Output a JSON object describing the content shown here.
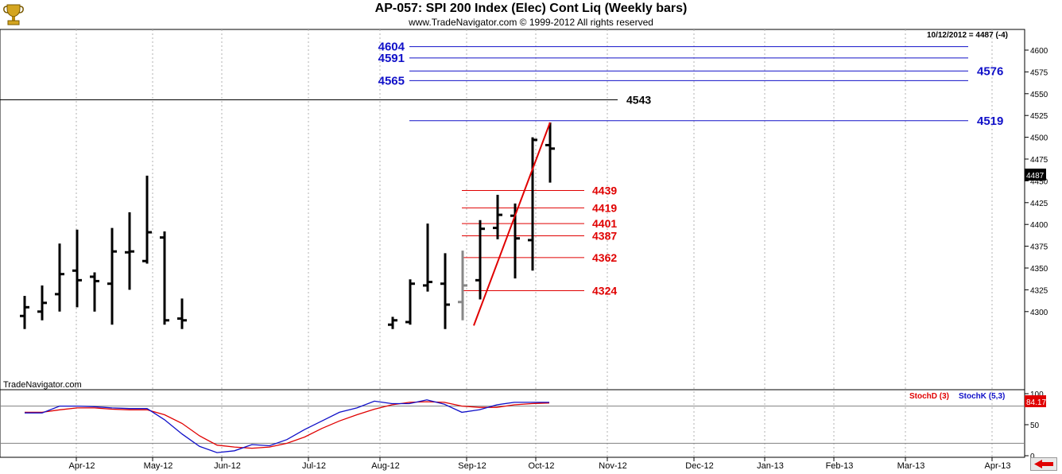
{
  "header": {
    "title": "AP-057:  SPI 200 Index (Elec) Cont Liq  (Weekly bars)",
    "subtitle": "www.TradeNavigator.com © 1999-2012 All rights reserved"
  },
  "watermark": "TradeNavigator.com",
  "last_quote": "10/12/2012 = 4487 (-4)",
  "price_marker": "4487",
  "stoch_marker": "84.17",
  "colors": {
    "bars": "#000000",
    "gray_bars": "#888888",
    "blue_levels": "#1010c8",
    "red_levels": "#e00000",
    "stoch_d": "#e00000",
    "stoch_k": "#1010c8"
  },
  "chart_data": [
    {
      "type": "ohlc",
      "title": "AP-057:  SPI 200 Index (Elec) Cont Liq  (Weekly bars)",
      "ylim": [
        4284,
        4624
      ],
      "yticks": [
        "4300",
        "4325",
        "4350",
        "4375",
        "4400",
        "4425",
        "4450",
        "4475",
        "4500",
        "4525",
        "4550",
        "4575",
        "4600"
      ],
      "x_tick_labels": [
        "Apr-12",
        "May-12",
        "Jun-12",
        "Jul-12",
        "Aug-12",
        "Sep-12",
        "Oct-12",
        "Nov-12",
        "Dec-12",
        "Jan-13",
        "Feb-13",
        "Mar-13",
        "Apr-13"
      ],
      "bars": [
        {
          "x": 31,
          "high": 4318,
          "low": 4280,
          "open": 4295,
          "close": 4305
        },
        {
          "x": 53,
          "high": 4330,
          "low": 4290,
          "open": 4300,
          "close": 4310
        },
        {
          "x": 75,
          "high": 4378,
          "low": 4300,
          "open": 4320,
          "close": 4343
        },
        {
          "x": 97,
          "high": 4394,
          "low": 4305,
          "open": 4347,
          "close": 4336
        },
        {
          "x": 119,
          "high": 4345,
          "low": 4300,
          "open": 4340,
          "close": 4335
        },
        {
          "x": 141,
          "high": 4396,
          "low": 4285,
          "open": 4332,
          "close": 4369
        },
        {
          "x": 163,
          "high": 4414,
          "low": 4325,
          "open": 4368,
          "close": 4369
        },
        {
          "x": 185,
          "high": 4456,
          "low": 4355,
          "open": 4358,
          "close": 4391
        },
        {
          "x": 207,
          "high": 4392,
          "low": 4285,
          "open": 4385,
          "close": 4290
        },
        {
          "x": 229,
          "high": 4315,
          "low": 4280,
          "open": 4292,
          "close": 4290
        },
        {
          "x": 494,
          "high": 4294,
          "low": 4280,
          "open": 4285,
          "close": 4290
        },
        {
          "x": 516,
          "high": 4337,
          "low": 4285,
          "open": 4288,
          "close": 4332
        },
        {
          "x": 538,
          "high": 4401,
          "low": 4323,
          "open": 4330,
          "close": 4334
        },
        {
          "x": 560,
          "high": 4367,
          "low": 4280,
          "open": 4332,
          "close": 4308
        },
        {
          "x": 582,
          "high": 4370,
          "low": 4290,
          "open": 4311,
          "close": 4330,
          "gray": true
        },
        {
          "x": 604,
          "high": 4405,
          "low": 4314,
          "open": 4336,
          "close": 4395
        },
        {
          "x": 626,
          "high": 4434,
          "low": 4383,
          "open": 4396,
          "close": 4411
        },
        {
          "x": 648,
          "high": 4424,
          "low": 4338,
          "open": 4410,
          "close": 4384
        },
        {
          "x": 670,
          "high": 4500,
          "low": 4347,
          "open": 4382,
          "close": 4497
        },
        {
          "x": 692,
          "high": 4517,
          "low": 4448,
          "open": 4491,
          "close": 4487
        }
      ],
      "blue_levels": [
        {
          "value": 4604,
          "label": "4604",
          "label_side": "left"
        },
        {
          "value": 4591,
          "label": "4591",
          "label_side": "left"
        },
        {
          "value": 4576,
          "label": "4576",
          "label_side": "right"
        },
        {
          "value": 4565,
          "label": "4565",
          "label_side": "left"
        },
        {
          "value": 4519,
          "label": "4519",
          "label_side": "right"
        }
      ],
      "black_level": {
        "value": 4543,
        "label": "4543"
      },
      "red_levels": [
        {
          "value": 4439,
          "label": "4439"
        },
        {
          "value": 4419,
          "label": "4419"
        },
        {
          "value": 4401,
          "label": "4401"
        },
        {
          "value": 4387,
          "label": "4387"
        },
        {
          "value": 4362,
          "label": "4362"
        },
        {
          "value": 4324,
          "label": "4324"
        }
      ],
      "trend_line": {
        "from": {
          "x": 596,
          "y": 4284
        },
        "to": {
          "x": 692,
          "y": 4517
        }
      }
    },
    {
      "type": "line",
      "title": "",
      "ylim": [
        0,
        100
      ],
      "yticks": [
        "100",
        "50",
        "0"
      ],
      "reference_lines": [
        80,
        20
      ],
      "legend": [
        "StochD (3)",
        "StochK (5,3)"
      ],
      "series": [
        {
          "name": "StochD (3)",
          "color": "#e00000",
          "x": [
            31,
            53,
            75,
            97,
            119,
            141,
            163,
            185,
            207,
            229,
            251,
            273,
            295,
            317,
            339,
            361,
            383,
            405,
            427,
            449,
            471,
            493,
            515,
            537,
            559,
            581,
            603,
            625,
            647,
            669,
            691
          ],
          "values": [
            70,
            70,
            74,
            77,
            77,
            75,
            74,
            74,
            66,
            52,
            32,
            17,
            14,
            12,
            14,
            20,
            30,
            44,
            56,
            66,
            75,
            82,
            86,
            87,
            86,
            80,
            78,
            78,
            82,
            84,
            85
          ]
        },
        {
          "name": "StochK (5,3)",
          "color": "#1010c8",
          "x": [
            31,
            53,
            75,
            97,
            119,
            141,
            163,
            185,
            207,
            229,
            251,
            273,
            295,
            317,
            339,
            361,
            383,
            405,
            427,
            449,
            471,
            493,
            515,
            537,
            559,
            581,
            603,
            625,
            647,
            669,
            691
          ],
          "values": [
            69,
            69,
            80,
            80,
            79,
            77,
            76,
            76,
            58,
            35,
            15,
            5,
            8,
            18,
            16,
            26,
            42,
            56,
            70,
            77,
            88,
            84,
            84,
            90,
            83,
            70,
            74,
            82,
            86,
            86,
            86
          ]
        }
      ]
    }
  ]
}
